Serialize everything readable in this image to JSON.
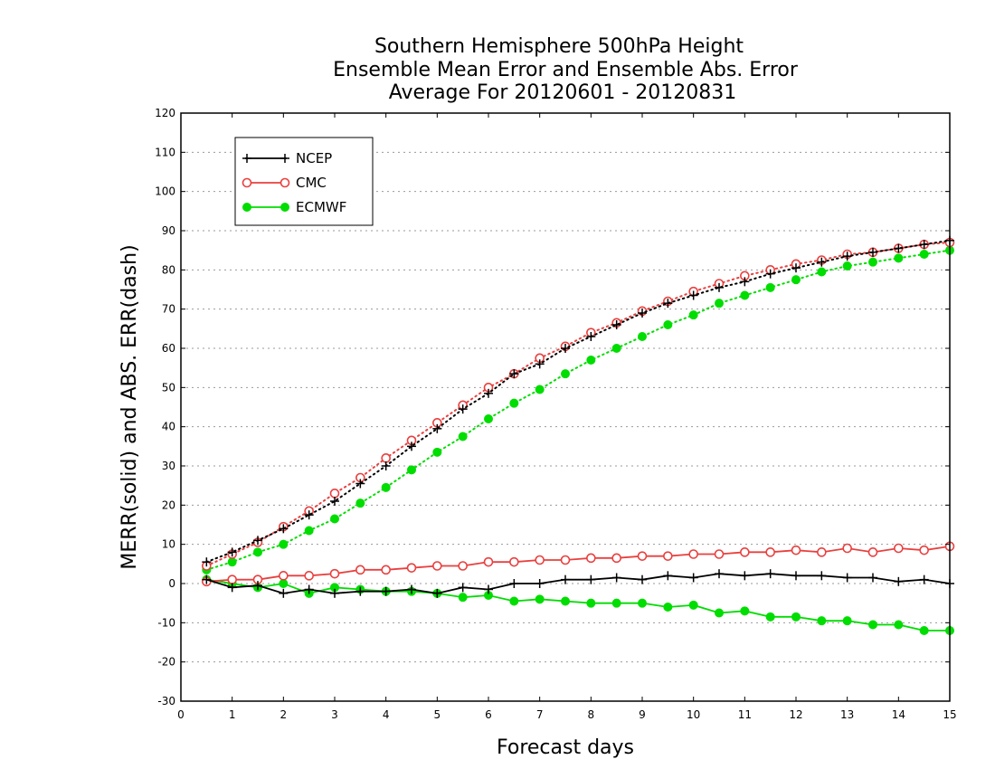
{
  "chart_data": {
    "type": "line",
    "title": [
      "Southern Hemisphere 500hPa Height",
      "Ensemble Mean Error and Ensemble Abs. Error",
      "Average For 20120601 - 20120831"
    ],
    "xlabel": "Forecast days",
    "ylabel": "MERR(solid) and ABS. ERR(dash)",
    "xlim": [
      0,
      15
    ],
    "ylim": [
      -30,
      120
    ],
    "x_ticks": [
      0,
      1,
      2,
      3,
      4,
      5,
      6,
      7,
      8,
      9,
      10,
      11,
      12,
      13,
      14,
      15
    ],
    "y_ticks": [
      -30,
      -20,
      -10,
      0,
      10,
      20,
      30,
      40,
      50,
      60,
      70,
      80,
      90,
      100,
      110,
      120
    ],
    "grid": "horizontal dotted",
    "legend_position": "top-left",
    "x": [
      0.5,
      1,
      1.5,
      2,
      2.5,
      3,
      3.5,
      4,
      4.5,
      5,
      5.5,
      6,
      6.5,
      7,
      7.5,
      8,
      8.5,
      9,
      9.5,
      10,
      10.5,
      11,
      11.5,
      12,
      12.5,
      13,
      13.5,
      14,
      14.5,
      15
    ],
    "series": [
      {
        "name": "NCEP",
        "color": "#000000",
        "marker": "plus",
        "merr": [
          1,
          -1,
          -0.5,
          -2.5,
          -1.5,
          -2.5,
          -2,
          -2,
          -1.5,
          -2.5,
          -1,
          -1.5,
          0,
          0,
          1,
          1,
          1.5,
          1,
          2,
          1.5,
          2.5,
          2,
          2.5,
          2,
          2,
          1.5,
          1.5,
          0.5,
          1,
          0
        ],
        "abs_err": [
          5.5,
          8,
          11,
          14,
          17.5,
          21,
          25.5,
          30,
          35,
          39.5,
          44.5,
          48.5,
          53.5,
          56,
          60,
          63,
          66,
          69,
          71.5,
          73.5,
          75.5,
          77,
          79,
          80.5,
          82,
          83.5,
          84.5,
          85.5,
          86.5,
          87.5
        ]
      },
      {
        "name": "CMC",
        "color": "#e8403f",
        "marker": "open-circle",
        "merr": [
          0.5,
          1,
          1,
          2,
          2,
          2.5,
          3.5,
          3.5,
          4,
          4.5,
          4.5,
          5.5,
          5.5,
          6,
          6,
          6.5,
          6.5,
          7,
          7,
          7.5,
          7.5,
          8,
          8,
          8.5,
          8,
          9,
          8,
          9,
          8.5,
          9.5
        ],
        "abs_err": [
          4.5,
          7.5,
          10.5,
          14.5,
          18.5,
          23,
          27,
          32,
          36.5,
          41,
          45.5,
          50,
          53.5,
          57.5,
          60.5,
          64,
          66.5,
          69.5,
          72,
          74.5,
          76.5,
          78.5,
          80,
          81.5,
          82.5,
          84,
          84.5,
          85.5,
          86.5,
          87
        ]
      },
      {
        "name": "ECMWF",
        "color": "#00dd00",
        "marker": "filled-circle",
        "merr": [
          1,
          0,
          -1,
          0,
          -2.5,
          -1,
          -1.5,
          -2,
          -2,
          -2.5,
          -3.5,
          -3,
          -4.5,
          -4,
          -4.5,
          -5,
          -5,
          -5,
          -6,
          -5.5,
          -7.5,
          -7,
          -8.5,
          -8.5,
          -9.5,
          -9.5,
          -10.5,
          -10.5,
          -12,
          -12
        ],
        "abs_err": [
          3.5,
          5.5,
          8,
          10,
          13.5,
          16.5,
          20.5,
          24.5,
          29,
          33.5,
          37.5,
          42,
          46,
          49.5,
          53.5,
          57,
          60,
          63,
          66,
          68.5,
          71.5,
          73.5,
          75.5,
          77.5,
          79.5,
          81,
          82,
          83,
          84,
          85
        ]
      }
    ]
  }
}
